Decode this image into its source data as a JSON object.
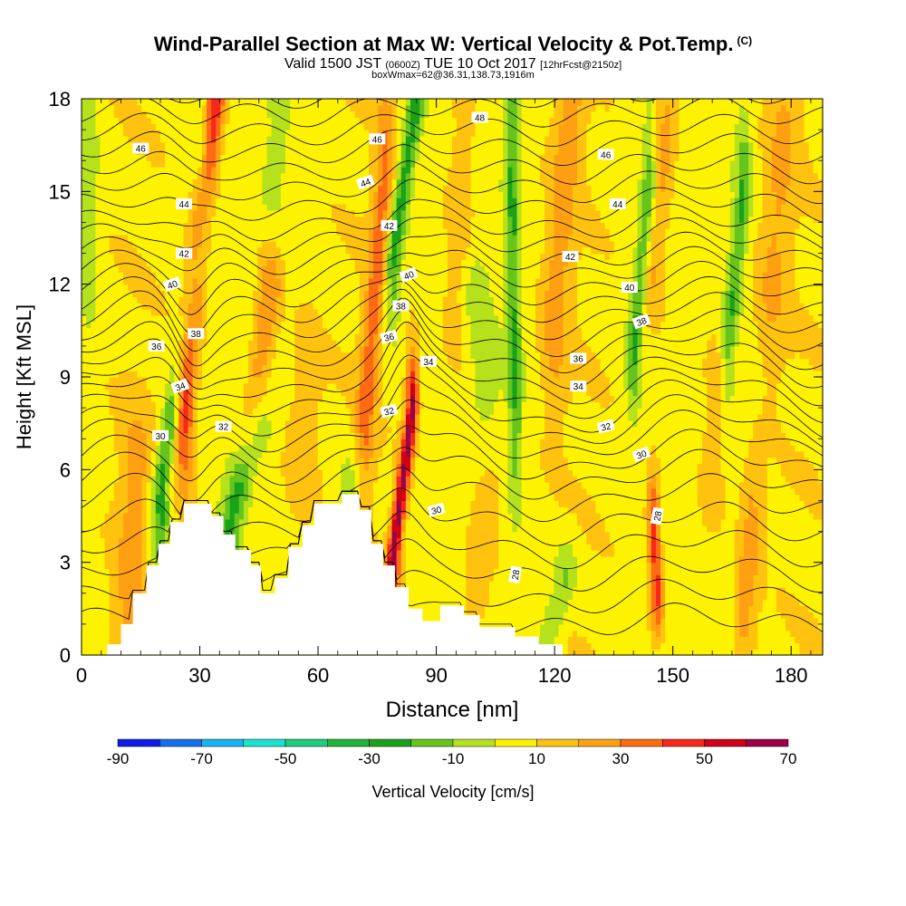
{
  "header": {
    "title": "Wind-Parallel Section at Max W: Vertical Velocity & Pot.Temp.",
    "copyright": "(C)",
    "valid_a": "Valid 1500 JST",
    "valid_b": "(0600Z)",
    "valid_c": "TUE 10 Oct 2017",
    "valid_d": "[12hrFcst@2150z]",
    "box_info": "boxWmax=62@36.31,138.73,1916m"
  },
  "chart_data": {
    "type": "heatmap",
    "xlabel": "Distance [nm]",
    "ylabel": "Height [Kft MSL]",
    "xlim": [
      0,
      188
    ],
    "ylim": [
      0,
      18
    ],
    "x_ticks": [
      "0",
      "30",
      "60",
      "90",
      "120",
      "150",
      "180"
    ],
    "y_ticks": [
      "0",
      "3",
      "6",
      "9",
      "12",
      "15",
      "18"
    ],
    "colorbar": {
      "label": "Vertical Velocity [cm/s]",
      "tick_labels": [
        "-90",
        "-70",
        "-50",
        "-30",
        "-10",
        "10",
        "30",
        "50",
        "70"
      ],
      "bounds": [
        -90,
        -80,
        -70,
        -60,
        -50,
        -40,
        -30,
        -20,
        -10,
        0,
        10,
        20,
        30,
        40,
        50,
        60,
        70
      ],
      "colors": [
        "#0f1ce6",
        "#1470e8",
        "#18b4f0",
        "#19e3d0",
        "#1ecc7e",
        "#20b43c",
        "#1aa31a",
        "#66c41c",
        "#b6e11d",
        "#fdf200",
        "#ffc20e",
        "#ffa012",
        "#ff6a15",
        "#f8281a",
        "#cf0018",
        "#9c0046"
      ]
    },
    "terrain": [
      {
        "x": 0,
        "h": 0
      },
      {
        "x": 6.5,
        "h": 0.35
      },
      {
        "x": 10,
        "h": 1.0
      },
      {
        "x": 13,
        "h": 2.0
      },
      {
        "x": 16.5,
        "h": 2.9
      },
      {
        "x": 19.5,
        "h": 3.6
      },
      {
        "x": 22.5,
        "h": 4.3
      },
      {
        "x": 26,
        "h": 4.9
      },
      {
        "x": 33,
        "h": 4.5
      },
      {
        "x": 36,
        "h": 3.9
      },
      {
        "x": 39,
        "h": 3.4
      },
      {
        "x": 43,
        "h": 2.9
      },
      {
        "x": 45.5,
        "h": 2.0
      },
      {
        "x": 49,
        "h": 2.5
      },
      {
        "x": 52.5,
        "h": 3.5
      },
      {
        "x": 56,
        "h": 4.2
      },
      {
        "x": 59,
        "h": 4.9
      },
      {
        "x": 66,
        "h": 5.2
      },
      {
        "x": 70.5,
        "h": 4.7
      },
      {
        "x": 73.5,
        "h": 3.6
      },
      {
        "x": 76.5,
        "h": 2.9
      },
      {
        "x": 79.5,
        "h": 2.2
      },
      {
        "x": 83,
        "h": 1.5
      },
      {
        "x": 86.5,
        "h": 1.1
      },
      {
        "x": 91,
        "h": 1.6
      },
      {
        "x": 97,
        "h": 1.3
      },
      {
        "x": 101,
        "h": 0.9
      },
      {
        "x": 110,
        "h": 0.6
      },
      {
        "x": 116,
        "h": 0.35
      },
      {
        "x": 122,
        "h": 0
      },
      {
        "x": 188,
        "h": 0
      }
    ],
    "w_features": [
      {
        "x0": 20,
        "x1": 31,
        "y0": 5.5,
        "y1": 14,
        "w": -32,
        "sx": 2.4,
        "sy": 3.6
      },
      {
        "x0": 26,
        "x1": 34,
        "y0": 9,
        "y1": 18,
        "w": 48,
        "sx": 2.6,
        "sy": 3.4
      },
      {
        "x0": 37,
        "x1": 44,
        "y0": 4,
        "y1": 7,
        "w": -28,
        "sx": 3.5,
        "sy": 1.8
      },
      {
        "x0": 43,
        "x1": 48,
        "y0": 7.5,
        "y1": 12,
        "w": 26,
        "sx": 3.2,
        "sy": 2.2
      },
      {
        "x0": 79,
        "x1": 84,
        "y0": 3.2,
        "y1": 8,
        "w": 58,
        "sx": 1.6,
        "sy": 1.7
      },
      {
        "x0": 72,
        "x1": 77,
        "y0": 8,
        "y1": 15.5,
        "w": 28,
        "sx": 2.4,
        "sy": 2.6
      },
      {
        "x0": 79,
        "x1": 85,
        "y0": 13,
        "y1": 18,
        "w": -32,
        "sx": 2.2,
        "sy": 2.3
      },
      {
        "x0": 68,
        "x1": 66,
        "y0": 5.4,
        "y1": 4.4,
        "w": -14,
        "sx": 3.2,
        "sy": 1.2
      },
      {
        "x0": 110,
        "x1": 109,
        "y0": 8,
        "y1": 17,
        "w": -26,
        "sx": 1.8,
        "sy": 3.0
      },
      {
        "x0": 103,
        "x1": 100,
        "y0": 9,
        "y1": 11.5,
        "w": -12,
        "sx": 3.5,
        "sy": 1.5
      },
      {
        "x0": 118,
        "x1": 123,
        "y0": 0.5,
        "y1": 2.5,
        "w": -18,
        "sx": 3.0,
        "sy": 1.2
      },
      {
        "x0": 120,
        "x1": 124,
        "y0": 11,
        "y1": 18,
        "w": 18,
        "sx": 3.5,
        "sy": 3.2
      },
      {
        "x0": 140,
        "x1": 144,
        "y0": 10,
        "y1": 15,
        "w": -28,
        "sx": 2.0,
        "sy": 2.4
      },
      {
        "x0": 145,
        "x1": 149,
        "y0": 13,
        "y1": 18,
        "w": 18,
        "sx": 3.2,
        "sy": 2.4
      },
      {
        "x0": 146,
        "x1": 145,
        "y0": 2.0,
        "y1": 4.5,
        "w": 38,
        "sx": 1.7,
        "sy": 1.4
      },
      {
        "x0": 164,
        "x1": 168,
        "y0": 10,
        "y1": 15,
        "w": -26,
        "sx": 2.0,
        "sy": 2.5
      },
      {
        "x0": 168,
        "x1": 170,
        "y0": 1.0,
        "y1": 4.5,
        "w": 18,
        "sx": 3.0,
        "sy": 1.8
      },
      {
        "x0": 2,
        "x1": 2,
        "y0": 13,
        "y1": 17,
        "w": -12,
        "sx": 2.5,
        "sy": 3
      },
      {
        "x0": 160,
        "x1": 162,
        "y0": 6,
        "y1": 9,
        "w": 14,
        "sx": 4,
        "sy": 2
      },
      {
        "x0": 175,
        "x1": 178,
        "y0": 12,
        "y1": 17,
        "w": 14,
        "sx": 4,
        "sy": 3
      },
      {
        "x0": 95,
        "x1": 97,
        "y0": 12,
        "y1": 17,
        "w": 12,
        "sx": 4,
        "sy": 3
      },
      {
        "x0": 12,
        "x1": 14,
        "y0": 2,
        "y1": 6,
        "w": 16,
        "sx": 4,
        "sy": 2.2
      },
      {
        "x0": 55,
        "x1": 57,
        "y0": 6,
        "y1": 9,
        "w": 12,
        "sx": 4,
        "sy": 2
      },
      {
        "x0": 48,
        "x1": 50,
        "y0": 14,
        "y1": 17,
        "w": -10,
        "sx": 3,
        "sy": 2
      },
      {
        "x0": 100,
        "x1": 103,
        "y0": 2,
        "y1": 5,
        "w": 14,
        "sx": 4,
        "sy": 1.5
      }
    ],
    "theta_contours": [
      {
        "base": 1.1,
        "label": "28"
      },
      {
        "base": 1.9
      },
      {
        "base": 2.7
      },
      {
        "base": 3.5
      },
      {
        "base": 4.3,
        "label": "30"
      },
      {
        "base": 5.1
      },
      {
        "base": 5.8
      },
      {
        "base": 6.4
      },
      {
        "base": 7.0,
        "label": "32"
      },
      {
        "base": 7.5
      },
      {
        "base": 8.0
      },
      {
        "base": 8.5,
        "label": "34"
      },
      {
        "base": 9.0
      },
      {
        "base": 9.5
      },
      {
        "base": 10.0,
        "label": "36"
      },
      {
        "base": 10.5
      },
      {
        "base": 11.0
      },
      {
        "base": 11.5,
        "label": "38"
      },
      {
        "base": 12.0
      },
      {
        "base": 12.5
      },
      {
        "base": 13.0,
        "label": "40"
      },
      {
        "base": 13.5
      },
      {
        "base": 14.0
      },
      {
        "base": 14.6,
        "label": "42"
      },
      {
        "base": 15.2
      },
      {
        "base": 15.8
      },
      {
        "base": 16.4,
        "label": "44"
      },
      {
        "base": 17.0
      },
      {
        "base": 17.6
      },
      {
        "base": 18.2,
        "label": "46"
      }
    ],
    "contour_labels": [
      {
        "text": "46",
        "x": 15,
        "y": 16.4,
        "rot": 0
      },
      {
        "text": "46",
        "x": 75,
        "y": 16.7,
        "rot": 0
      },
      {
        "text": "46",
        "x": 133,
        "y": 16.2,
        "rot": 0
      },
      {
        "text": "48",
        "x": 101,
        "y": 17.4,
        "rot": 0
      },
      {
        "text": "44",
        "x": 26,
        "y": 14.6,
        "rot": 0
      },
      {
        "text": "44",
        "x": 72,
        "y": 15.3,
        "rot": -20
      },
      {
        "text": "44",
        "x": 136,
        "y": 14.6,
        "rot": 0
      },
      {
        "text": "42",
        "x": 26,
        "y": 13.0,
        "rot": 0
      },
      {
        "text": "42",
        "x": 78,
        "y": 13.9,
        "rot": 0
      },
      {
        "text": "42",
        "x": 124,
        "y": 12.9,
        "rot": 0
      },
      {
        "text": "40",
        "x": 23,
        "y": 12.0,
        "rot": -20
      },
      {
        "text": "40",
        "x": 83,
        "y": 12.3,
        "rot": -20
      },
      {
        "text": "40",
        "x": 139,
        "y": 11.9,
        "rot": 0
      },
      {
        "text": "38",
        "x": 29,
        "y": 10.4,
        "rot": 0
      },
      {
        "text": "38",
        "x": 81,
        "y": 11.3,
        "rot": 0
      },
      {
        "text": "38",
        "x": 142,
        "y": 10.8,
        "rot": -20
      },
      {
        "text": "36",
        "x": 19,
        "y": 10.0,
        "rot": 0
      },
      {
        "text": "36",
        "x": 78,
        "y": 10.3,
        "rot": -15
      },
      {
        "text": "36",
        "x": 126,
        "y": 9.6,
        "rot": 0
      },
      {
        "text": "34",
        "x": 25,
        "y": 8.7,
        "rot": -20
      },
      {
        "text": "34",
        "x": 88,
        "y": 9.5,
        "rot": 0
      },
      {
        "text": "34",
        "x": 126,
        "y": 8.7,
        "rot": 0
      },
      {
        "text": "32",
        "x": 36,
        "y": 7.4,
        "rot": 0
      },
      {
        "text": "32",
        "x": 78,
        "y": 7.9,
        "rot": -15
      },
      {
        "text": "32",
        "x": 133,
        "y": 7.4,
        "rot": -15
      },
      {
        "text": "30",
        "x": 20,
        "y": 7.1,
        "rot": 0
      },
      {
        "text": "30",
        "x": 90,
        "y": 4.7,
        "rot": -15
      },
      {
        "text": "30",
        "x": 142,
        "y": 6.5,
        "rot": -20
      },
      {
        "text": "28",
        "x": 110,
        "y": 2.6,
        "rot": -80
      },
      {
        "text": "28",
        "x": 146,
        "y": 4.5,
        "rot": -80
      }
    ]
  }
}
